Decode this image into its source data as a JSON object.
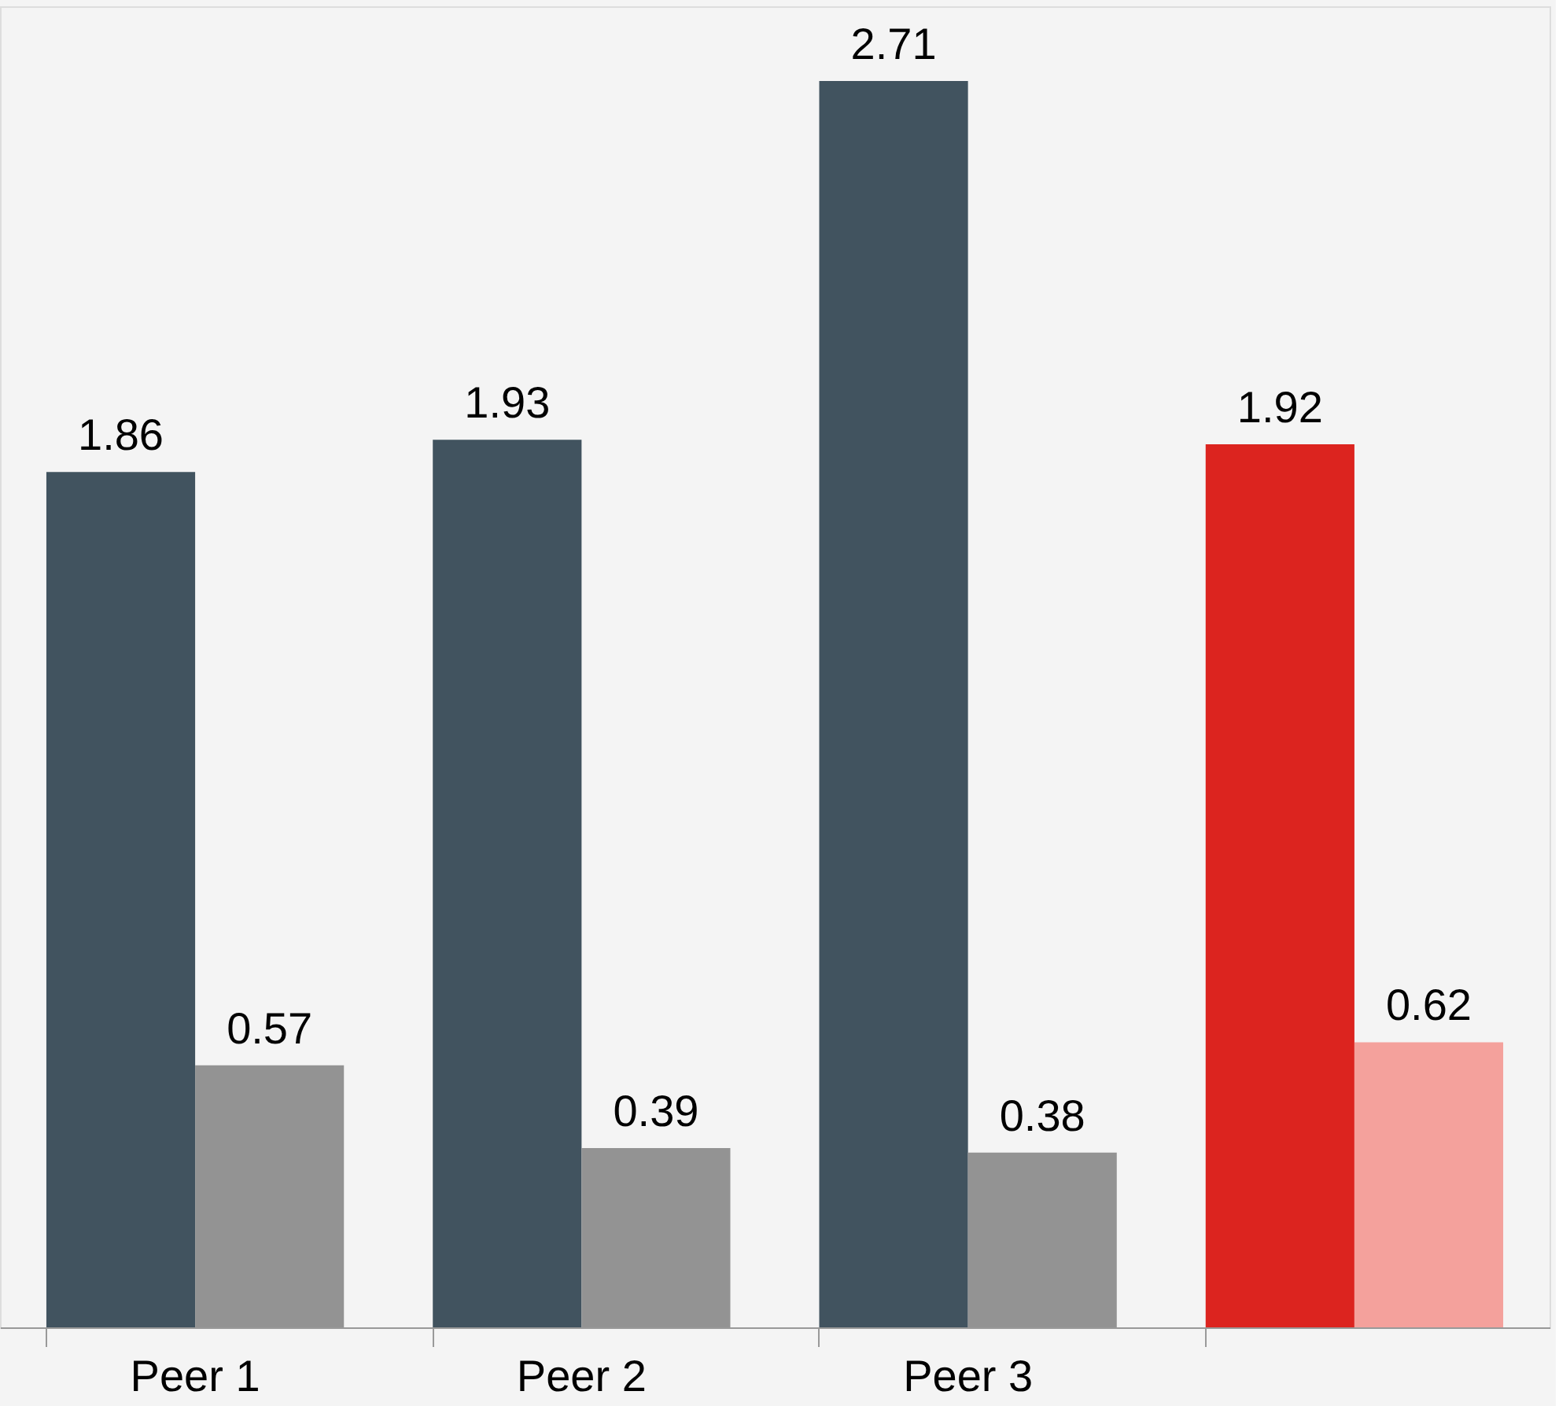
{
  "chart_data": {
    "type": "bar",
    "categories": [
      "Peer 1",
      "Peer 2",
      "Peer 3",
      null
    ],
    "series": [
      {
        "colors": [
          "#41535f",
          "#41535f",
          "#41535f",
          "#dc241f"
        ],
        "values": [
          1.86,
          1.93,
          2.71,
          1.92
        ]
      },
      {
        "colors": [
          "#939393",
          "#939393",
          "#939393",
          "#f4a19c"
        ],
        "values": [
          0.57,
          0.39,
          0.38,
          0.62
        ]
      }
    ],
    "data_labels": true,
    "grid": false
  }
}
